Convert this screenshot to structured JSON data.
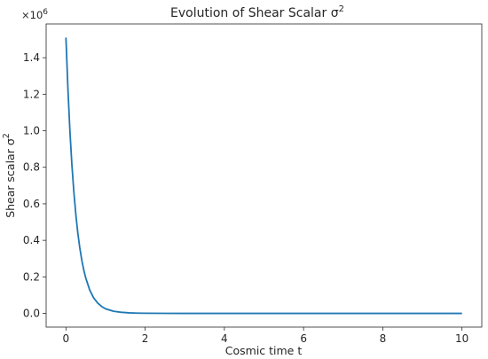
{
  "chart_data": {
    "type": "line",
    "title": {
      "main": "Evolution of Shear Scalar σ",
      "sup": "2"
    },
    "xlabel": "Cosmic time t",
    "ylabel": {
      "main": "Shear scalar σ",
      "sup": "2"
    },
    "y_offset": {
      "base": "×10",
      "exp": "6"
    },
    "xlim": [
      -0.5,
      10.5
    ],
    "ylim": [
      -0.075,
      1.585
    ],
    "x_ticks": [
      0,
      2,
      4,
      6,
      8,
      10
    ],
    "x_tick_labels": [
      "0",
      "2",
      "4",
      "6",
      "8",
      "10"
    ],
    "y_ticks": [
      0.0,
      0.2,
      0.4,
      0.6,
      0.8,
      1.0,
      1.2,
      1.4
    ],
    "y_tick_labels": [
      "0.0",
      "0.2",
      "0.4",
      "0.6",
      "0.8",
      "1.0",
      "1.2",
      "1.4"
    ],
    "grid": false,
    "line_color": "#1f77b4",
    "series": [
      {
        "x": [
          0.0,
          0.05,
          0.1,
          0.15,
          0.2,
          0.25,
          0.3,
          0.35,
          0.4,
          0.45,
          0.5,
          0.6,
          0.7,
          0.8,
          0.9,
          1.0,
          1.2,
          1.4,
          1.6,
          1.8,
          2.0,
          2.5,
          3.0,
          4.0,
          5.0,
          6.0,
          7.0,
          8.0,
          9.0,
          10.0
        ],
        "values": [
          1.51,
          1.23,
          1.0,
          0.815,
          0.665,
          0.541,
          0.44,
          0.359,
          0.292,
          0.238,
          0.194,
          0.128,
          0.085,
          0.057,
          0.038,
          0.025,
          0.012,
          0.006,
          0.003,
          0.0015,
          0.0008,
          0.0002,
          5e-05,
          0.0,
          0.0,
          0.0,
          0.0,
          0.0,
          0.0,
          0.0
        ]
      }
    ]
  }
}
